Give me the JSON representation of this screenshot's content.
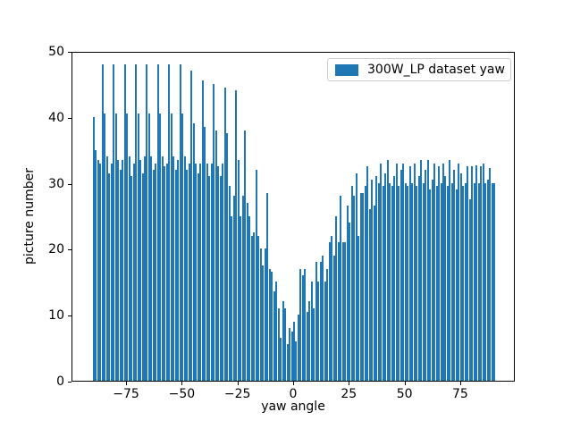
{
  "figure": {
    "background": "#ffffff"
  },
  "chart_data": {
    "type": "bar",
    "title": "",
    "xlabel": "yaw angle",
    "ylabel": "picture number",
    "legend": {
      "label": "300W_LP dataset yaw",
      "position": "upper right",
      "swatch_color": "#1f77b4",
      "border_color": "#cccccc"
    },
    "bar_color": "#1f77b4",
    "grid": false,
    "xlim": [
      -99.5,
      99.5
    ],
    "ylim": [
      0,
      50
    ],
    "xticks": [
      -75,
      -50,
      -25,
      0,
      25,
      50,
      75
    ],
    "xtick_labels": [
      "−75",
      "−50",
      "−25",
      "0",
      "25",
      "50",
      "75"
    ],
    "yticks": [
      0,
      10,
      20,
      30,
      40,
      50
    ],
    "ytick_labels": [
      "0",
      "10",
      "20",
      "30",
      "40",
      "50"
    ],
    "x": [
      -90,
      -89,
      -88,
      -87,
      -86,
      -85,
      -84,
      -83,
      -82,
      -81,
      -80,
      -79,
      -78,
      -77,
      -76,
      -75,
      -74,
      -73,
      -72,
      -71,
      -70,
      -69,
      -68,
      -67,
      -66,
      -65,
      -64,
      -63,
      -62,
      -61,
      -60,
      -59,
      -58,
      -57,
      -56,
      -55,
      -54,
      -53,
      -52,
      -51,
      -50,
      -49,
      -48,
      -47,
      -46,
      -45,
      -44,
      -43,
      -42,
      -41,
      -40,
      -39,
      -38,
      -37,
      -36,
      -35,
      -34,
      -33,
      -32,
      -31,
      -30,
      -29,
      -28,
      -27,
      -26,
      -25,
      -24,
      -23,
      -22,
      -21,
      -20,
      -19,
      -18,
      -17,
      -16,
      -15,
      -14,
      -13,
      -12,
      -11,
      -10,
      -9,
      -8,
      -7,
      -6,
      -5,
      -4,
      -3,
      -2,
      -1,
      0,
      1,
      2,
      3,
      4,
      5,
      6,
      7,
      8,
      9,
      10,
      11,
      12,
      13,
      14,
      15,
      16,
      17,
      18,
      19,
      20,
      21,
      22,
      23,
      24,
      25,
      26,
      27,
      28,
      29,
      30,
      31,
      32,
      33,
      34,
      35,
      36,
      37,
      38,
      39,
      40,
      41,
      42,
      43,
      44,
      45,
      46,
      47,
      48,
      49,
      50,
      51,
      52,
      53,
      54,
      55,
      56,
      57,
      58,
      59,
      60,
      61,
      62,
      63,
      64,
      65,
      66,
      67,
      68,
      69,
      70,
      71,
      72,
      73,
      74,
      75,
      76,
      77,
      78,
      79,
      80,
      81,
      82,
      83,
      84,
      85,
      86,
      87,
      88,
      89,
      90
    ],
    "values": [
      40,
      35,
      33.5,
      33,
      48,
      40.5,
      34,
      31.5,
      33,
      48,
      40.5,
      33.5,
      32,
      33.5,
      48,
      40.5,
      34,
      31,
      33,
      48,
      40.5,
      33.5,
      31.5,
      34,
      48,
      40.5,
      34,
      32,
      33,
      48,
      40.5,
      34,
      32.5,
      33,
      48,
      40.5,
      34,
      32,
      33.5,
      48,
      40.5,
      34,
      32,
      33,
      47,
      39,
      33,
      31.5,
      33,
      45.5,
      38.5,
      33,
      31,
      33,
      45,
      38,
      32.5,
      31,
      33,
      44.5,
      37.5,
      29.5,
      25,
      28,
      44,
      33.5,
      25,
      28,
      38,
      27,
      25,
      22,
      22.5,
      32,
      22,
      20,
      17.5,
      20,
      28.5,
      17,
      16.5,
      13.5,
      15,
      11,
      6.5,
      12,
      11,
      5.5,
      8,
      7.5,
      9,
      6,
      10,
      17,
      16,
      17,
      10.5,
      12,
      15,
      11,
      18,
      15,
      18,
      19,
      15,
      17,
      21,
      22,
      19,
      25,
      21,
      28,
      21,
      21,
      26.5,
      24,
      29.5,
      28,
      31.5,
      22,
      28.5,
      28.5,
      29.5,
      32.5,
      26,
      30.5,
      26.5,
      31,
      30,
      33,
      29.5,
      31.5,
      33.5,
      30,
      29.5,
      31,
      33,
      29.5,
      32,
      33,
      30,
      29.5,
      32.5,
      30,
      33,
      29.5,
      31,
      33.5,
      30,
      32,
      33.5,
      29,
      30.5,
      33,
      29.5,
      32.5,
      30,
      33,
      31,
      29.5,
      33.5,
      30,
      32,
      29,
      33,
      31.5,
      29.5,
      30,
      32.5,
      27.5,
      32.5,
      30,
      32.7,
      30,
      32.5,
      33,
      30,
      30.5,
      32.2,
      30,
      30
    ]
  }
}
